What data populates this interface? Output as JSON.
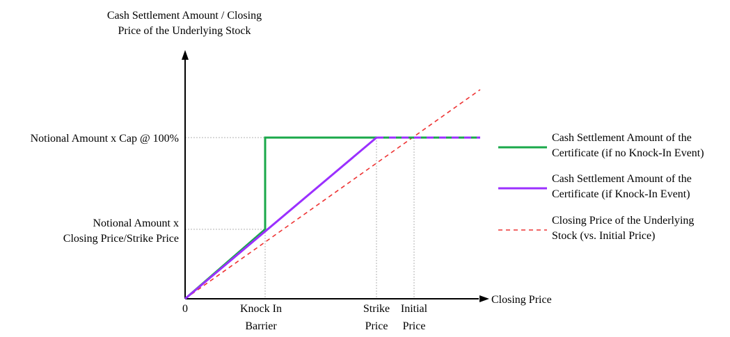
{
  "chart_data": {
    "type": "line",
    "title": "",
    "ylabel_lines": [
      "Cash Settlement Amount / Closing",
      "Price of the Underlying Stock"
    ],
    "xlabel": "Closing Price",
    "origin_label": "0",
    "x_ticks": [
      {
        "lines": [
          "Knock In",
          "Barrier"
        ]
      },
      {
        "lines": [
          "Strike",
          "Price"
        ]
      },
      {
        "lines": [
          "Initial",
          "Price"
        ]
      }
    ],
    "y_ticks": [
      {
        "lines": [
          "Notional Amount x Cap @ 100%"
        ]
      },
      {
        "lines": [
          "Notional Amount x",
          "Closing Price/Strike Price"
        ]
      }
    ],
    "legend_position": "right",
    "series": [
      {
        "name_lines": [
          "Cash Settlement Amount of the",
          "Certificate (if no Knock-In Event)"
        ],
        "color": "#1aa84a",
        "dash": false
      },
      {
        "name_lines": [
          "Cash Settlement Amount of the",
          "Certificate (if Knock-In Event)"
        ],
        "color": "#9b30ff",
        "dash": false
      },
      {
        "name_lines": [
          "Closing Price of the Underlying",
          "Stock (vs. Initial Price)"
        ],
        "color": "#ee3333",
        "dash": true
      }
    ]
  }
}
